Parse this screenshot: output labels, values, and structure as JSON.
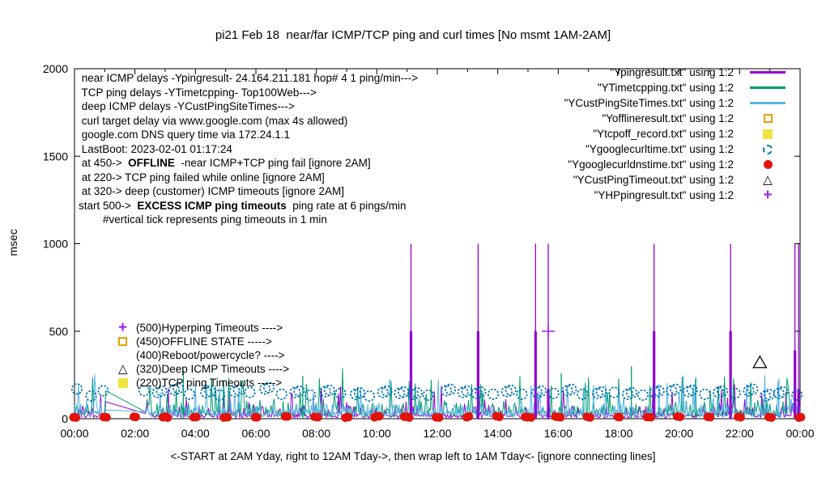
{
  "icons": {
    "triangle": "△",
    "plus": "+"
  },
  "info_lines": [
    {
      "pre": " near ICMP delays -Ypingresult- 24.164.211.181 hop# 4 1 ping/min--->",
      "bold": "",
      "post": ""
    },
    {
      "pre": " TCP ping delays -YTimetcpping- Top100Web--->",
      "bold": "",
      "post": ""
    },
    {
      "pre": " deep ICMP delays -YCustPingSiteTimes--->",
      "bold": "",
      "post": ""
    },
    {
      "pre": " curl target delay via www.google.com (max 4s allowed)",
      "bold": "",
      "post": ""
    },
    {
      "pre": " google.com DNS query time via 172.24.1.1",
      "bold": "",
      "post": ""
    },
    {
      "pre": " LastBoot: 2023-02-01 01:17:24",
      "bold": "",
      "post": ""
    },
    {
      "pre": " at 450->  ",
      "bold": "OFFLINE",
      "post": "  -near ICMP+TCP ping fail [ignore 2AM]"
    },
    {
      "pre": " at 220-> TCP ping failed while online [ignore 2AM]",
      "bold": "",
      "post": ""
    },
    {
      "pre": " at 320-> deep (customer) ICMP timeouts [ignore 2AM]",
      "bold": "",
      "post": ""
    },
    {
      "pre": "start 500->  ",
      "bold": "EXCESS ICMP ping timeouts",
      "post": "  ping rate at 6 pings/min"
    },
    {
      "pre": "        #vertical tick represents ping timeouts in 1 min",
      "bold": "",
      "post": ""
    }
  ],
  "legend": [
    {
      "label": "\"Ypingresult.txt\" using 1:2",
      "marker": "line",
      "color": "#9400d3"
    },
    {
      "label": "\"YTimetcpping.txt\" using 1:2",
      "marker": "line",
      "color": "#009e73"
    },
    {
      "label": "\"YCustPingSiteTimes.txt\" using 1:2",
      "marker": "line",
      "color": "#56b4e9"
    },
    {
      "label": "\"Yofflineresult.txt\" using 1:2",
      "marker": "square-open",
      "color": "#e69f00"
    },
    {
      "label": "\"Ytcpoff_record.txt\" using 1:2",
      "marker": "square-filled",
      "color": "#f0e442"
    },
    {
      "label": "\"Ygooglecurltime.txt\" using 1:2",
      "marker": "circle-dashed",
      "color": "#0072b2"
    },
    {
      "label": "\"Ygooglecurldnstime.txt\" using 1:2",
      "marker": "circle-filled",
      "color": "#e3120b"
    },
    {
      "label": "\"YCustPingTimeout.txt\" using 1:2",
      "marker": "triangle",
      "color": "#000000"
    },
    {
      "label": "\"YHPpingresult.txt\" using 1:2",
      "marker": "plus",
      "color": "#a020f0"
    }
  ],
  "threshold_annotations": [
    {
      "marker": "plus",
      "color": "#a020f0",
      "text": "(500)Hyperping Timeouts ---->"
    },
    {
      "marker": "square-open",
      "color": "#e69f00",
      "text": "(450)OFFLINE STATE ----->"
    },
    {
      "marker": "",
      "color": "",
      "text": "(400)Reboot/powercycle? ---->"
    },
    {
      "marker": "triangle",
      "color": "#000000",
      "text": "(320)Deep ICMP Timeouts ---->"
    },
    {
      "marker": "square-filled",
      "color": "#f0e442",
      "text": "(220)TCP ping Timeouts ----->"
    }
  ],
  "chart_data": {
    "type": "line",
    "title": "pi21 Feb 18  near/far ICMP/TCP ping and curl times [No msmt 1AM-2AM]",
    "ylabel": "msec",
    "xlabel": "<-START at 2AM Yday, right to 12AM Tday->, then wrap left to 1AM Tday<- [ignore connecting lines]",
    "x_ticks": [
      "00:00",
      "02:00",
      "04:00",
      "06:00",
      "08:00",
      "10:00",
      "12:00",
      "14:00",
      "16:00",
      "18:00",
      "20:00",
      "22:00",
      "00:00"
    ],
    "y_ticks": [
      0,
      500,
      1000,
      1500,
      2000
    ],
    "y_range": [
      0,
      2000
    ],
    "x_range_hours": [
      0,
      24
    ],
    "x_minor_every_hours": 1,
    "grid": false,
    "legend_position": "top-right",
    "gap_hours": {
      "start": 1.05,
      "end": 2.33
    },
    "series": [
      {
        "name": "Ypingresult.txt",
        "color": "#9400d3",
        "seed": 11,
        "noise": [
          5,
          20,
          0.3,
          60,
          0.07,
          60,
          120
        ],
        "gap_join": [
          97,
          30
        ],
        "events": [
          {
            "h": 11.13,
            "peak": 1000,
            "base": 500
          },
          {
            "h": 13.35,
            "peak": 1000,
            "base": 500
          },
          {
            "h": 15.25,
            "peak": 1000,
            "base": 500
          },
          {
            "h": 15.67,
            "peak": 1000,
            "base": 170
          },
          {
            "h": 19.17,
            "peak": 1000,
            "base": 500
          },
          {
            "h": 21.7,
            "peak": 1000,
            "base": 500
          },
          {
            "h": 23.83,
            "peak": 1000,
            "base": 390
          },
          {
            "h": 23.95,
            "peak": 1000,
            "base": 170
          }
        ]
      },
      {
        "name": "YTimetcpping.txt",
        "color": "#009e73",
        "seed": 7,
        "noise": [
          12,
          35,
          0.35,
          70,
          0.06,
          80,
          140
        ],
        "gap_join": [
          160,
          40
        ],
        "events": [
          {
            "h": 3.6,
            "peak": 275,
            "base": 0
          },
          {
            "h": 7.55,
            "peak": 245,
            "base": 0
          },
          {
            "h": 16.1,
            "peak": 260,
            "base": 0
          },
          {
            "h": 18.42,
            "peak": 300,
            "base": 0
          },
          {
            "h": 20.55,
            "peak": 235,
            "base": 0
          }
        ]
      },
      {
        "name": "YCustPingSiteTimes.txt",
        "color": "#56b4e9",
        "seed": 3,
        "noise": [
          10,
          30,
          0.35,
          60,
          0.06,
          70,
          120
        ],
        "gap_join": [
          50,
          40
        ],
        "events": [
          {
            "h": 10.42,
            "peak": 225,
            "base": 0
          },
          {
            "h": 23.3,
            "peak": 230,
            "base": 0
          }
        ]
      }
    ],
    "curl_circles": {
      "name": "Ygooglecurltime.txt",
      "color": "#0072b2",
      "radius": 6.2,
      "pair_offset_h": 0.13,
      "points": [
        [
          0.08,
          170,
          0
        ],
        [
          0.55,
          130,
          0
        ],
        [
          0.95,
          160,
          0
        ],
        [
          2.3,
          160,
          0
        ],
        [
          2.75,
          150,
          1
        ],
        [
          3.3,
          165,
          1
        ],
        [
          3.8,
          140,
          0
        ],
        [
          4.35,
          150,
          1
        ],
        [
          4.8,
          135,
          0
        ],
        [
          5.3,
          155,
          1
        ],
        [
          5.8,
          150,
          0
        ],
        [
          6.3,
          170,
          1
        ],
        [
          6.85,
          140,
          0
        ],
        [
          7.3,
          150,
          1
        ],
        [
          7.8,
          135,
          0
        ],
        [
          8.3,
          155,
          1
        ],
        [
          8.8,
          145,
          0
        ],
        [
          9.3,
          140,
          1
        ],
        [
          9.75,
          130,
          0
        ],
        [
          10.2,
          150,
          1
        ],
        [
          10.75,
          145,
          1
        ],
        [
          11.2,
          140,
          1
        ],
        [
          11.7,
          135,
          0
        ],
        [
          12.3,
          160,
          1
        ],
        [
          12.85,
          150,
          1
        ],
        [
          13.3,
          145,
          1
        ],
        [
          13.85,
          140,
          0
        ],
        [
          14.3,
          155,
          1
        ],
        [
          14.8,
          140,
          0
        ],
        [
          15.3,
          150,
          1
        ],
        [
          15.85,
          145,
          0
        ],
        [
          16.3,
          160,
          1
        ],
        [
          16.8,
          140,
          0
        ],
        [
          17.3,
          145,
          1
        ],
        [
          17.85,
          150,
          0
        ],
        [
          18.3,
          140,
          1
        ],
        [
          18.8,
          135,
          0
        ],
        [
          19.2,
          150,
          1
        ],
        [
          19.75,
          160,
          1
        ],
        [
          20.3,
          155,
          1
        ],
        [
          20.85,
          140,
          0
        ],
        [
          21.3,
          150,
          1
        ],
        [
          21.85,
          145,
          0
        ],
        [
          22.3,
          160,
          1
        ],
        [
          22.85,
          130,
          1
        ],
        [
          23.3,
          145,
          1
        ],
        [
          23.9,
          135,
          0
        ]
      ]
    },
    "dns_dots": {
      "name": "Ygooglecurldnstime.txt",
      "color": "#e3120b",
      "radius": 5.3,
      "every_hours": 1,
      "value_range": [
        6,
        14
      ],
      "seed": 5
    },
    "special_markers": [
      {
        "type": "triangle",
        "color": "#000000",
        "h": 22.67,
        "v": 320
      },
      {
        "type": "plus",
        "color": "#a020f0",
        "h": 15.67,
        "v": 500
      }
    ]
  }
}
